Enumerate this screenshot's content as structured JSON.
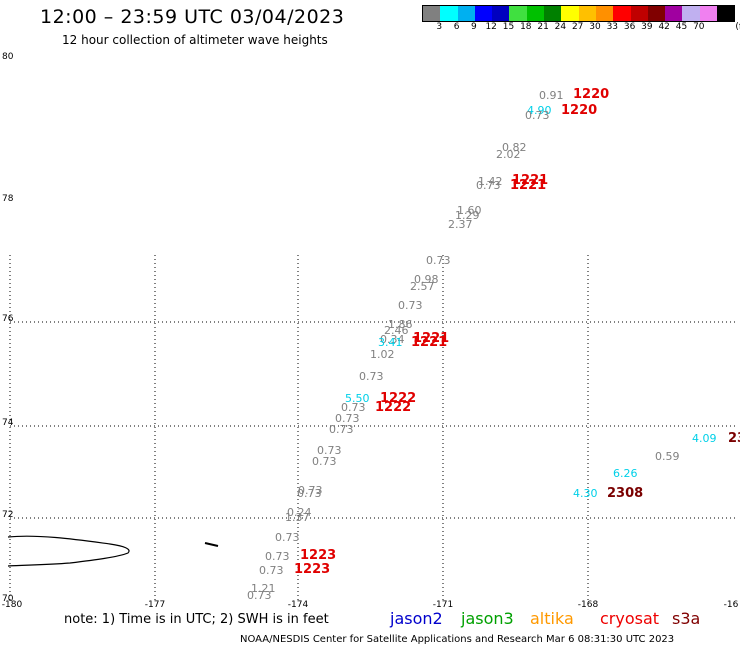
{
  "header": {
    "title": "12:00 – 23:59 UTC 03/04/2023",
    "subtitle": "12 hour collection of altimeter wave heights"
  },
  "colorbar": {
    "colors": [
      "#808080",
      "#00ffff",
      "#00b0f0",
      "#0000ff",
      "#0000c0",
      "#40e040",
      "#00c000",
      "#008000",
      "#ffff00",
      "#ffc000",
      "#ff9000",
      "#ff0000",
      "#c00000",
      "#800000",
      "#a000a0",
      "#c0b0f0",
      "#f080f0",
      "#000000"
    ],
    "labels": [
      "3",
      "6",
      "9",
      "12",
      "15",
      "18",
      "21",
      "24",
      "27",
      "30",
      "33",
      "36",
      "39",
      "42",
      "45",
      "70",
      "(ft)"
    ]
  },
  "axes": {
    "lat_labels": [
      "80",
      "78",
      "76",
      "74",
      "72",
      "70"
    ],
    "lon_labels": [
      "-180",
      "-177",
      "-174",
      "-171",
      "-168",
      "-16"
    ]
  },
  "observations": [
    {
      "text": "0.91",
      "color": "gray"
    },
    {
      "text": "1220",
      "color": "red"
    },
    {
      "text": "4.90",
      "color": "cyan"
    },
    {
      "text": "0.73",
      "color": "gray"
    },
    {
      "text": "1220",
      "color": "red"
    },
    {
      "text": "0.82",
      "color": "gray"
    },
    {
      "text": "2.02",
      "color": "gray"
    },
    {
      "text": "1.42",
      "color": "gray"
    },
    {
      "text": "0.73",
      "color": "gray"
    },
    {
      "text": "1221",
      "color": "red"
    },
    {
      "text": "1221",
      "color": "red"
    },
    {
      "text": "1.60",
      "color": "gray"
    },
    {
      "text": "1.29",
      "color": "gray"
    },
    {
      "text": "2.37",
      "color": "gray"
    },
    {
      "text": "0.73",
      "color": "gray"
    },
    {
      "text": "0.98",
      "color": "gray"
    },
    {
      "text": "2.57",
      "color": "gray"
    },
    {
      "text": "0.73",
      "color": "gray"
    },
    {
      "text": "1.86",
      "color": "gray"
    },
    {
      "text": "2.46",
      "color": "gray"
    },
    {
      "text": "0.34",
      "color": "gray"
    },
    {
      "text": "3.41",
      "color": "cyan"
    },
    {
      "text": "1221",
      "color": "red"
    },
    {
      "text": "1221",
      "color": "red"
    },
    {
      "text": "1.02",
      "color": "gray"
    },
    {
      "text": "0.73",
      "color": "gray"
    },
    {
      "text": "5.50",
      "color": "cyan"
    },
    {
      "text": "1222",
      "color": "red"
    },
    {
      "text": "0.73",
      "color": "gray"
    },
    {
      "text": "1222",
      "color": "red"
    },
    {
      "text": "0.73",
      "color": "gray"
    },
    {
      "text": "0.73",
      "color": "gray"
    },
    {
      "text": "0.73",
      "color": "gray"
    },
    {
      "text": "0.73",
      "color": "gray"
    },
    {
      "text": "0.73",
      "color": "gray"
    },
    {
      "text": "0.73",
      "color": "gray"
    },
    {
      "text": "0.24",
      "color": "gray"
    },
    {
      "text": "1.37",
      "color": "gray"
    },
    {
      "text": "0.73",
      "color": "gray"
    },
    {
      "text": "0.73",
      "color": "gray"
    },
    {
      "text": "1223",
      "color": "red"
    },
    {
      "text": "0.73",
      "color": "gray"
    },
    {
      "text": "1223",
      "color": "red"
    },
    {
      "text": "1.21",
      "color": "gray"
    },
    {
      "text": "0.73",
      "color": "gray"
    },
    {
      "text": "4.09",
      "color": "cyan"
    },
    {
      "text": "23",
      "color": "maroon"
    },
    {
      "text": "0.59",
      "color": "gray"
    },
    {
      "text": "6.26",
      "color": "cyan"
    },
    {
      "text": "4.30",
      "color": "cyan"
    },
    {
      "text": "2308",
      "color": "maroon"
    }
  ],
  "legend": {
    "note": "note: 1) Time is in UTC; 2) SWH is in feet",
    "missions": [
      {
        "name": "jason2",
        "color": "#0000cc"
      },
      {
        "name": "jason3",
        "color": "#00a000"
      },
      {
        "name": "altika",
        "color": "#ff9900"
      },
      {
        "name": "cryosat",
        "color": "#ee0000"
      },
      {
        "name": "s3a",
        "color": "#800000"
      }
    ]
  },
  "footer": "NOAA/NESDIS Center for Satellite Applications and Research   Mar  6 08:31:30 UTC 2023"
}
